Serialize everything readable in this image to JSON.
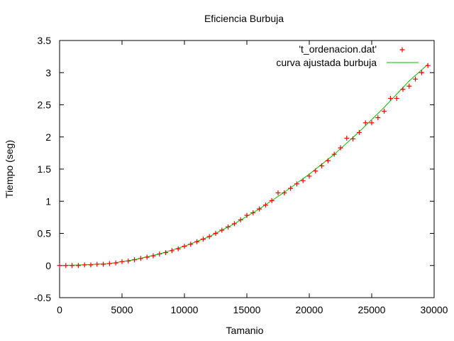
{
  "chart_data": {
    "type": "scatter",
    "title": "Eficiencia Burbuja",
    "xlabel": "Tamanio",
    "ylabel": "Tiempo (seg)",
    "xlim": [
      0,
      30000
    ],
    "ylim": [
      -0.5,
      3.5
    ],
    "xticks": [
      0,
      5000,
      10000,
      15000,
      20000,
      25000,
      30000
    ],
    "yticks": [
      -0.5,
      0,
      0.5,
      1,
      1.5,
      2,
      2.5,
      3,
      3.5
    ],
    "grid": false,
    "legend_position": "top-right",
    "series": [
      {
        "name": "'t_ordenacion.dat'",
        "kind": "points",
        "marker": "plus",
        "color": "#ff0000",
        "x": [
          0,
          500,
          1000,
          1500,
          2000,
          2500,
          3000,
          3500,
          4000,
          4500,
          5000,
          5500,
          6000,
          6500,
          7000,
          7500,
          8000,
          8500,
          9000,
          9500,
          10000,
          10500,
          11000,
          11500,
          12000,
          12500,
          13000,
          13500,
          14000,
          14500,
          15000,
          15500,
          16000,
          16500,
          17000,
          17500,
          18000,
          18500,
          19000,
          19500,
          20000,
          20500,
          21000,
          21500,
          22000,
          22500,
          23000,
          23500,
          24000,
          24500,
          25000,
          25500,
          26000,
          26500,
          27000,
          27500,
          28000,
          28500,
          29000,
          29500
        ],
        "y": [
          0,
          0,
          0,
          0,
          0.01,
          0.01,
          0.02,
          0.02,
          0.03,
          0.04,
          0.06,
          0.07,
          0.09,
          0.11,
          0.13,
          0.15,
          0.18,
          0.2,
          0.23,
          0.26,
          0.3,
          0.33,
          0.37,
          0.41,
          0.45,
          0.5,
          0.55,
          0.6,
          0.65,
          0.71,
          0.78,
          0.82,
          0.88,
          0.94,
          1.01,
          1.13,
          1.13,
          1.2,
          1.27,
          1.32,
          1.39,
          1.47,
          1.55,
          1.63,
          1.73,
          1.83,
          1.98,
          1.97,
          2.07,
          2.22,
          2.22,
          2.3,
          2.4,
          2.6,
          2.6,
          2.74,
          2.79,
          2.9,
          3.0,
          3.11
        ]
      },
      {
        "name": "curva ajustada burbuja",
        "kind": "line",
        "color": "#00c000",
        "x": [
          0,
          2000,
          4000,
          6000,
          8000,
          10000,
          12000,
          14000,
          16000,
          18000,
          20000,
          22000,
          24000,
          26000,
          28000,
          29500
        ],
        "y": [
          0,
          0.01,
          0.03,
          0.09,
          0.18,
          0.3,
          0.45,
          0.65,
          0.88,
          1.14,
          1.42,
          1.73,
          2.08,
          2.46,
          2.87,
          3.13
        ]
      }
    ]
  }
}
